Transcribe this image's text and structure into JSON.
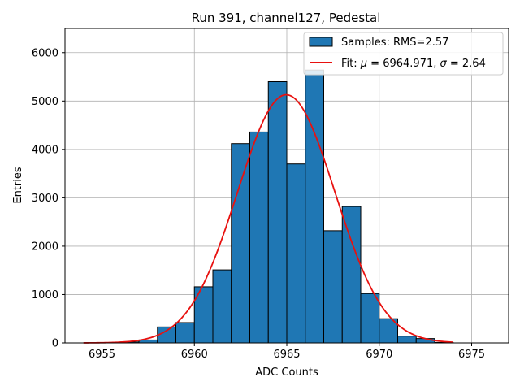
{
  "chart_data": {
    "type": "bar",
    "title": "Run 391, channel127, Pedestal",
    "xlabel": "ADC Counts",
    "ylabel": "Entries",
    "xlim": [
      6953,
      6977
    ],
    "ylim": [
      0,
      6500
    ],
    "x_ticks": [
      6955,
      6960,
      6965,
      6970,
      6975
    ],
    "y_ticks": [
      0,
      1000,
      2000,
      3000,
      4000,
      5000,
      6000
    ],
    "grid": true,
    "legend_position": "top-right",
    "bin_width": 1,
    "bins": [
      {
        "left": 6956,
        "value": 20
      },
      {
        "left": 6957,
        "value": 60
      },
      {
        "left": 6958,
        "value": 330
      },
      {
        "left": 6959,
        "value": 420
      },
      {
        "left": 6960,
        "value": 1160
      },
      {
        "left": 6961,
        "value": 1510
      },
      {
        "left": 6962,
        "value": 4120
      },
      {
        "left": 6963,
        "value": 4360
      },
      {
        "left": 6964,
        "value": 5400
      },
      {
        "left": 6965,
        "value": 3700
      },
      {
        "left": 6966,
        "value": 5640
      },
      {
        "left": 6967,
        "value": 2320
      },
      {
        "left": 6968,
        "value": 2820
      },
      {
        "left": 6969,
        "value": 1020
      },
      {
        "left": 6970,
        "value": 500
      },
      {
        "left": 6971,
        "value": 140
      },
      {
        "left": 6972,
        "value": 90
      },
      {
        "left": 6973,
        "value": 10
      }
    ],
    "series": [
      {
        "name": "Samples: RMS=2.57",
        "kind": "histogram",
        "color": "#1f77b4",
        "edgecolor": "#000000"
      },
      {
        "name_prefix": "Fit: ",
        "name_mu": "μ",
        "name_mid": " = 6964.971, ",
        "name_sigma": "σ",
        "name_suffix": " = 2.64",
        "kind": "gaussian-fit",
        "color": "#e8110f",
        "mu": 6964.971,
        "sigma": 2.64,
        "amplitude": 5130,
        "x_range": [
          6954,
          6974
        ]
      }
    ]
  }
}
